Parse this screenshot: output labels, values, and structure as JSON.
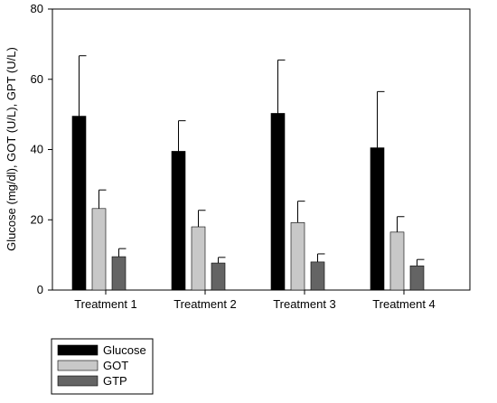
{
  "chart_data": {
    "type": "bar",
    "ylabel": "Glucose (mg/dl), GOT (U/L), GPT (U/L)",
    "xlabel": "",
    "ylim": [
      0,
      80
    ],
    "yticks": [
      0,
      20,
      40,
      60,
      80
    ],
    "grid": false,
    "legend_position": "bottom-left",
    "categories": [
      "Treatment 1",
      "Treatment 2",
      "Treatment 3",
      "Treatment 4"
    ],
    "series": [
      {
        "name": "Glucose",
        "color": "#000000",
        "values": [
          49.5,
          39.5,
          50.3,
          40.5
        ],
        "errors": [
          17.2,
          8.7,
          15.2,
          16.0
        ]
      },
      {
        "name": "GOT",
        "color": "#c8c8c8",
        "values": [
          23.2,
          18.0,
          19.2,
          16.5
        ],
        "errors": [
          5.3,
          4.7,
          6.1,
          4.4
        ]
      },
      {
        "name": "GTP",
        "color": "#646464",
        "values": [
          9.5,
          7.7,
          8.0,
          6.9
        ],
        "errors": [
          2.3,
          1.6,
          2.3,
          1.8
        ]
      }
    ]
  }
}
